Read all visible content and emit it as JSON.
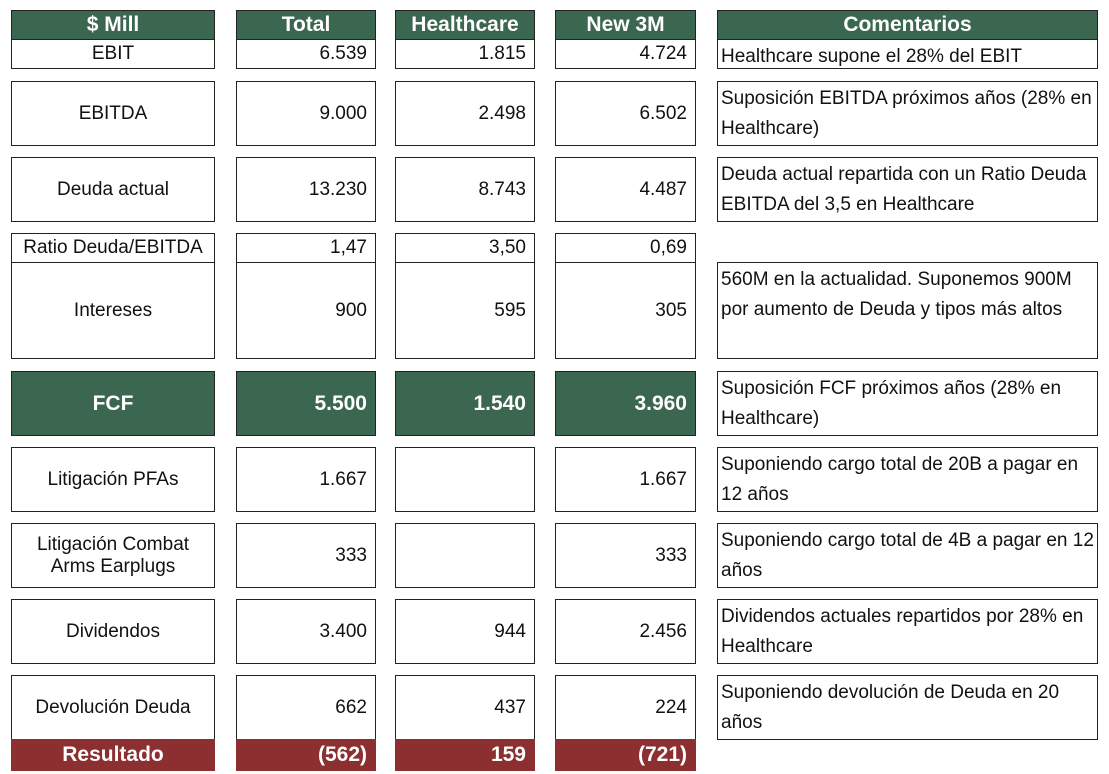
{
  "table": {
    "header": [
      "$ Mill",
      "Total",
      "Healthcare",
      "New 3M",
      "Comentarios"
    ],
    "rows": [
      [
        "EBIT",
        "6.539",
        "1.815",
        "4.724",
        "Healthcare supone el 28% del EBIT"
      ],
      [
        "EBITDA",
        "9.000",
        "2.498",
        "6.502",
        "Suposición EBITDA próximos años (28% en Healthcare)"
      ],
      [
        "Deuda actual",
        "13.230",
        "8.743",
        "4.487",
        "Deuda actual repartida con un Ratio Deuda EBITDA del 3,5 en Healthcare"
      ],
      [
        "Ratio Deuda/EBITDA",
        "1,47",
        "3,50",
        "0,69",
        null
      ],
      [
        "Intereses",
        "900",
        "595",
        "305",
        "560M en la actualidad. Suponemos 900M por aumento de Deuda y tipos más altos"
      ],
      [
        "FCF",
        "5.500",
        "1.540",
        "3.960",
        "Suposición FCF próximos años (28% en Healthcare)"
      ],
      [
        "Litigación PFAs",
        "1.667",
        null,
        "1.667",
        "Suponiendo cargo total de 20B a pagar en 12 años"
      ],
      [
        "Litigación Combat Arms Earplugs",
        "333",
        null,
        "333",
        "Suponiendo cargo total de 4B a pagar en 12 años"
      ],
      [
        "Dividendos",
        "3.400",
        "944",
        "2.456",
        "Dividendos actuales repartidos por 28% en Healthcare"
      ],
      [
        "Devolución Deuda",
        "662",
        "437",
        "224",
        "Suponiendo devolución de Deuda en 20 años"
      ],
      [
        "Resultado",
        "(562)",
        "159",
        "(721)",
        null
      ]
    ]
  }
}
